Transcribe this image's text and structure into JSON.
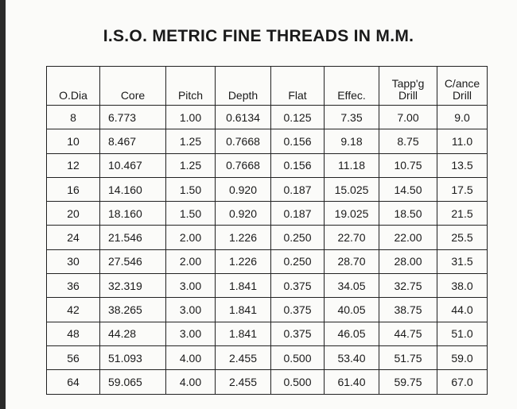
{
  "header": {
    "title": "I.S.O. METRIC FINE THREADS IN M.M."
  },
  "table": {
    "columns": [
      "O.Dia",
      "Core",
      "Pitch",
      "Depth",
      "Flat",
      "Effec.",
      "Tapp'g\nDrill",
      "C/ance\nDrill"
    ],
    "rows": [
      [
        "8",
        "6.773",
        "1.00",
        "0.6134",
        "0.125",
        "7.35",
        "7.00",
        "9.0"
      ],
      [
        "10",
        "8.467",
        "1.25",
        "0.7668",
        "0.156",
        "9.18",
        "8.75",
        "11.0"
      ],
      [
        "12",
        "10.467",
        "1.25",
        "0.7668",
        "0.156",
        "11.18",
        "10.75",
        "13.5"
      ],
      [
        "16",
        "14.160",
        "1.50",
        "0.920",
        "0.187",
        "15.025",
        "14.50",
        "17.5"
      ],
      [
        "20",
        "18.160",
        "1.50",
        "0.920",
        "0.187",
        "19.025",
        "18.50",
        "21.5"
      ],
      [
        "24",
        "21.546",
        "2.00",
        "1.226",
        "0.250",
        "22.70",
        "22.00",
        "25.5"
      ],
      [
        "30",
        "27.546",
        "2.00",
        "1.226",
        "0.250",
        "28.70",
        "28.00",
        "31.5"
      ],
      [
        "36",
        "32.319",
        "3.00",
        "1.841",
        "0.375",
        "34.05",
        "32.75",
        "38.0"
      ],
      [
        "42",
        "38.265",
        "3.00",
        "1.841",
        "0.375",
        "40.05",
        "38.75",
        "44.0"
      ],
      [
        "48",
        "44.28",
        "3.00",
        "1.841",
        "0.375",
        "46.05",
        "44.75",
        "51.0"
      ],
      [
        "56",
        "51.093",
        "4.00",
        "2.455",
        "0.500",
        "53.40",
        "51.75",
        "59.0"
      ],
      [
        "64",
        "59.065",
        "4.00",
        "2.455",
        "0.500",
        "61.40",
        "59.75",
        "67.0"
      ]
    ]
  }
}
